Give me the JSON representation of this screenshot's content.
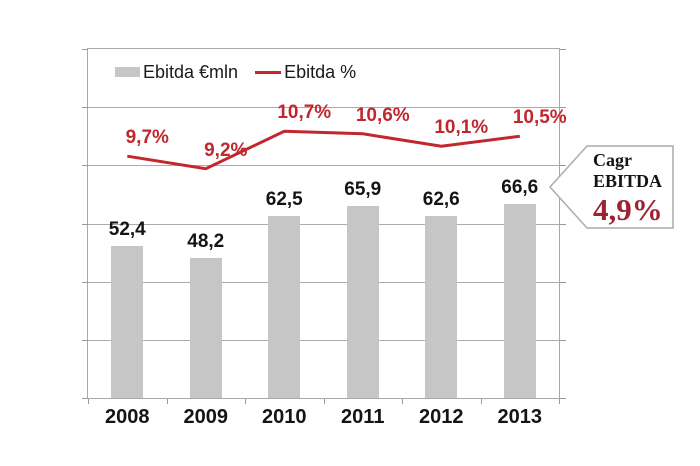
{
  "chart_data": {
    "type": "bar+line",
    "categories": [
      "2008",
      "2009",
      "2010",
      "2011",
      "2012",
      "2013"
    ],
    "series": [
      {
        "name": "Ebitda €mln",
        "type": "bar",
        "axis": "left",
        "values": [
          52.4,
          48.2,
          62.5,
          65.9,
          62.6,
          66.6
        ],
        "labels": [
          "52,4",
          "48,2",
          "62,5",
          "65,9",
          "62,6",
          "66,6"
        ]
      },
      {
        "name": "Ebitda %",
        "type": "line",
        "axis": "right",
        "values": [
          9.7,
          9.2,
          10.7,
          10.6,
          10.1,
          10.5
        ],
        "labels": [
          "9,7%",
          "9,2%",
          "10,7%",
          "10,6%",
          "10,1%",
          "10,5%"
        ]
      }
    ],
    "title": "",
    "xlabel": "",
    "ylabel": "",
    "left_axis": {
      "min": 0,
      "max": 120,
      "tick_labels_visible": false
    },
    "right_axis": {
      "min": 0,
      "max": 14,
      "tick_labels_visible": false
    },
    "grid": true,
    "legend_position": "top-left-inside"
  },
  "legend": {
    "bar_label": "Ebitda €mln",
    "line_label": "Ebitda %"
  },
  "callout": {
    "line1": "Cagr",
    "line2": "EBITDA",
    "value": "4,9%"
  },
  "colors": {
    "bar_fill": "#c6c6c6",
    "line_red": "#c1272d",
    "point_label_red": "#c1272d",
    "callout_value_red": "#9f2230",
    "gridline": "#ababab",
    "plot_border": "#a8a8a8",
    "text_black": "#141414"
  }
}
